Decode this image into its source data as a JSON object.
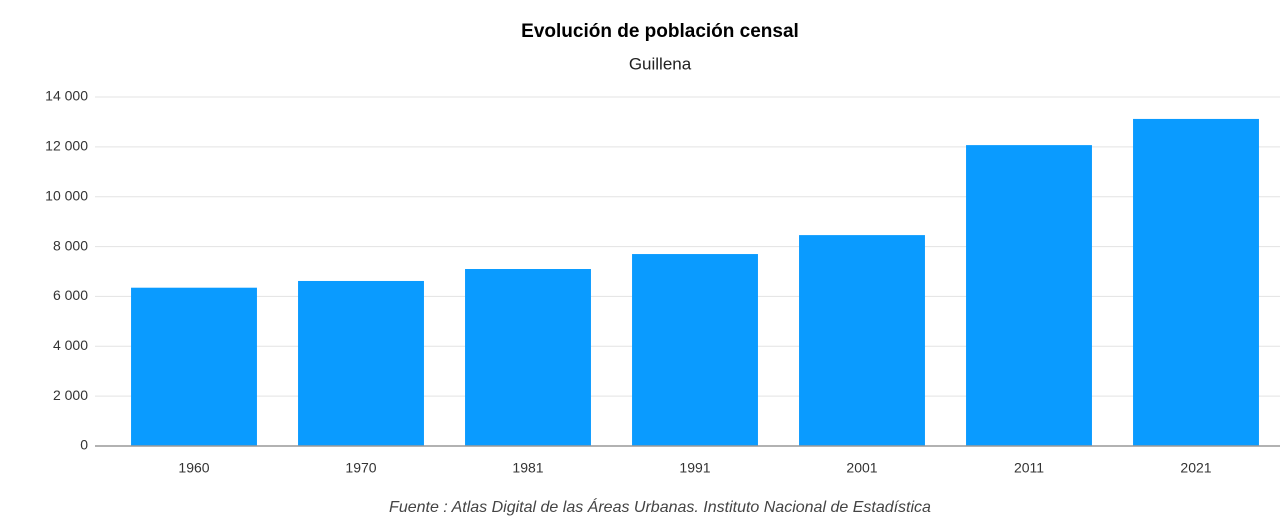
{
  "chart_data": {
    "type": "bar",
    "title": "Evolución de población censal",
    "subtitle": "Guillena",
    "source": "Fuente : Atlas Digital de las Áreas Urbanas. Instituto Nacional de Estadística",
    "categories": [
      "1960",
      "1970",
      "1981",
      "1991",
      "2001",
      "2011",
      "2021"
    ],
    "values": [
      6350,
      6620,
      7100,
      7700,
      8460,
      12070,
      13120
    ],
    "color": "#0a9bff",
    "ylim": [
      0,
      14000
    ],
    "yticks": [
      0,
      {
        "value": 2000,
        "label": "2 000"
      },
      {
        "value": 4000,
        "label": "4 000"
      },
      {
        "value": 6000,
        "label": "6 000"
      },
      {
        "value": 8000,
        "label": "8 000"
      },
      {
        "value": 10000,
        "label": "10 000"
      },
      {
        "value": 12000,
        "label": "12 000"
      },
      {
        "value": 14000,
        "label": "14 000"
      }
    ],
    "grid": true
  }
}
